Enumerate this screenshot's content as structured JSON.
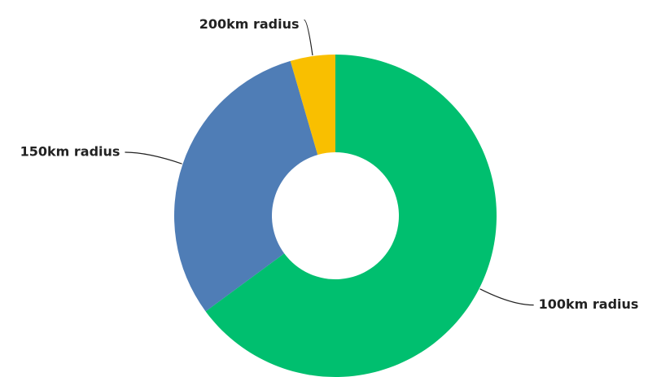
{
  "chart_data": {
    "type": "donut",
    "categories": [
      "100km radius",
      "150km radius",
      "200km radius"
    ],
    "values": [
      64.9,
      30.6,
      4.5
    ],
    "colors": [
      "#00bf6f",
      "#4f7db6",
      "#f9bf00"
    ]
  }
}
